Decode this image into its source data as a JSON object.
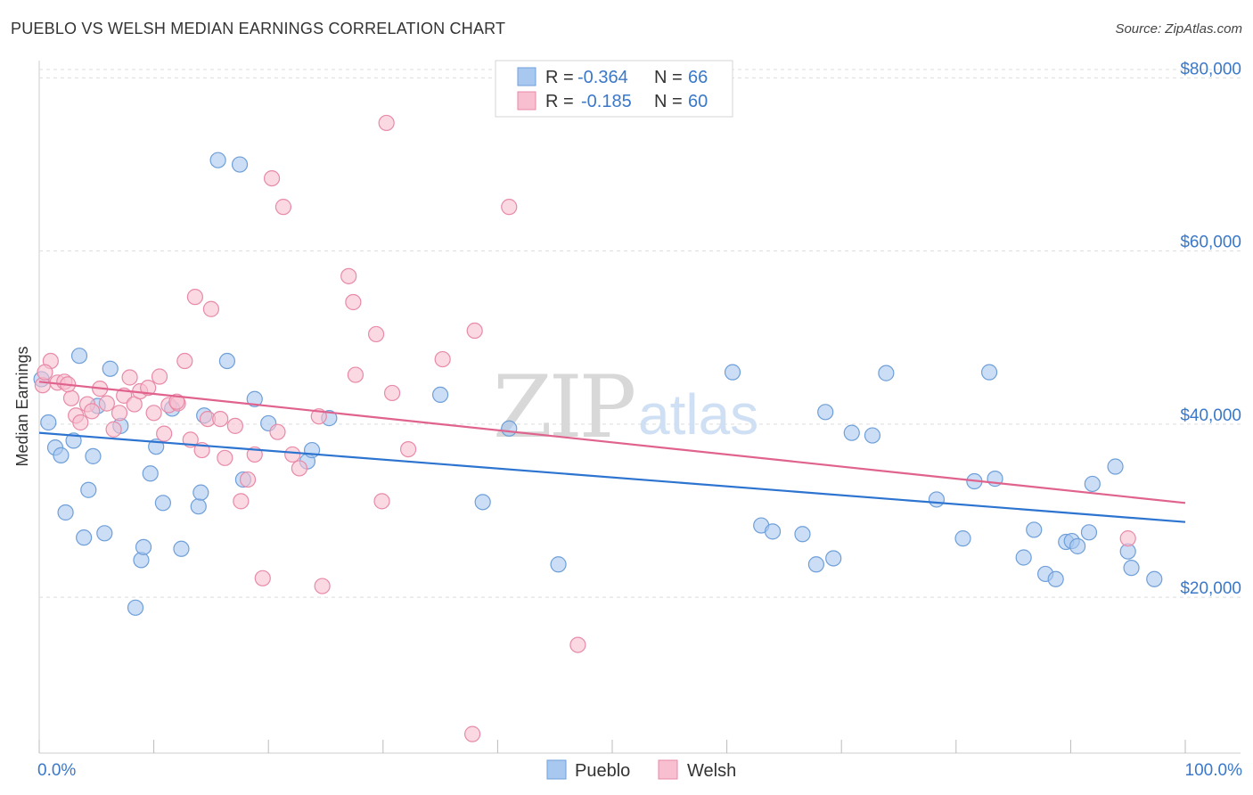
{
  "header": {
    "title": "PUEBLO VS WELSH MEDIAN EARNINGS CORRELATION CHART",
    "source": "Source: ZipAtlas.com"
  },
  "watermark": {
    "zip": "ZIP",
    "atlas": "atlas"
  },
  "legend": {
    "rows": [
      {
        "r_label": "R =",
        "r_value": "-0.364",
        "n_label": "N =",
        "n_value": "66",
        "color": "#a9c8f0",
        "border": "#6f9fd8"
      },
      {
        "r_label": "R =",
        "r_value": "-0.185",
        "n_label": "N =",
        "n_value": "60",
        "color": "#f7bfd0",
        "border": "#e88aa8"
      }
    ]
  },
  "bottom_legend": {
    "items": [
      "Pueblo",
      "Welsh"
    ]
  },
  "chart_data": {
    "type": "scatter",
    "title": "PUEBLO VS WELSH MEDIAN EARNINGS CORRELATION CHART",
    "xlabel": "",
    "ylabel": "Median Earnings",
    "xlim": [
      0,
      100
    ],
    "ylim": [
      2000,
      82000
    ],
    "x_tick_labels": [
      "0.0%",
      "100.0%"
    ],
    "y_ticks": [
      20000,
      40000,
      60000,
      80000
    ],
    "y_tick_labels": [
      "$20,000",
      "$40,000",
      "$60,000",
      "$80,000"
    ],
    "grid": true,
    "series": [
      {
        "name": "Pueblo",
        "color": "#a9c8f0",
        "stroke": "#6f9fd8",
        "line_color": "#2d74d0",
        "trend": {
          "x0": 0,
          "y0": 39000,
          "x1": 100,
          "y1": 28700
        },
        "points": [
          [
            0.2,
            45200
          ],
          [
            0.8,
            40200
          ],
          [
            1.4,
            37300
          ],
          [
            1.9,
            36400
          ],
          [
            2.3,
            29800
          ],
          [
            3.0,
            38100
          ],
          [
            3.5,
            47900
          ],
          [
            3.9,
            26900
          ],
          [
            4.3,
            32400
          ],
          [
            4.7,
            36300
          ],
          [
            5.1,
            42100
          ],
          [
            5.7,
            27400
          ],
          [
            6.2,
            46400
          ],
          [
            7.1,
            39800
          ],
          [
            8.4,
            18800
          ],
          [
            8.9,
            24300
          ],
          [
            9.1,
            25800
          ],
          [
            9.7,
            34300
          ],
          [
            10.2,
            37400
          ],
          [
            10.8,
            30900
          ],
          [
            11.6,
            41800
          ],
          [
            12.4,
            25600
          ],
          [
            13.9,
            30500
          ],
          [
            14.1,
            32100
          ],
          [
            14.4,
            41000
          ],
          [
            15.6,
            70500
          ],
          [
            16.4,
            47300
          ],
          [
            17.5,
            70000
          ],
          [
            17.8,
            33600
          ],
          [
            18.8,
            42900
          ],
          [
            20.0,
            40100
          ],
          [
            23.4,
            35700
          ],
          [
            23.8,
            37000
          ],
          [
            25.3,
            40700
          ],
          [
            35.0,
            43400
          ],
          [
            38.7,
            31000
          ],
          [
            41.0,
            39500
          ],
          [
            45.3,
            23800
          ],
          [
            60.5,
            46000
          ],
          [
            63.0,
            28300
          ],
          [
            64.0,
            27600
          ],
          [
            66.6,
            27300
          ],
          [
            67.8,
            23800
          ],
          [
            68.6,
            41400
          ],
          [
            69.3,
            24500
          ],
          [
            70.9,
            39000
          ],
          [
            72.7,
            38700
          ],
          [
            73.9,
            45900
          ],
          [
            78.3,
            31300
          ],
          [
            80.6,
            26800
          ],
          [
            81.6,
            33400
          ],
          [
            82.9,
            46000
          ],
          [
            83.4,
            33700
          ],
          [
            85.9,
            24600
          ],
          [
            86.8,
            27800
          ],
          [
            87.8,
            22700
          ],
          [
            88.7,
            22100
          ],
          [
            89.6,
            26400
          ],
          [
            90.1,
            26500
          ],
          [
            90.6,
            25900
          ],
          [
            91.6,
            27500
          ],
          [
            91.9,
            33100
          ],
          [
            93.9,
            35100
          ],
          [
            95.0,
            25300
          ],
          [
            95.3,
            23400
          ],
          [
            97.3,
            22100
          ]
        ]
      },
      {
        "name": "Welsh",
        "color": "#f7bfd0",
        "stroke": "#e88aa8",
        "line_color": "#e0638d",
        "trend": {
          "x0": 0,
          "y0": 44900,
          "x1": 100,
          "y1": 30900
        },
        "points": [
          [
            0.3,
            44500
          ],
          [
            1.0,
            47300
          ],
          [
            1.6,
            44800
          ],
          [
            2.2,
            44900
          ],
          [
            2.8,
            43000
          ],
          [
            3.2,
            41000
          ],
          [
            3.6,
            40200
          ],
          [
            4.2,
            42300
          ],
          [
            4.6,
            41500
          ],
          [
            5.3,
            44100
          ],
          [
            5.9,
            42400
          ],
          [
            6.5,
            39400
          ],
          [
            7.0,
            41300
          ],
          [
            7.4,
            43300
          ],
          [
            7.9,
            45400
          ],
          [
            8.3,
            42300
          ],
          [
            8.8,
            43800
          ],
          [
            9.5,
            44200
          ],
          [
            10.0,
            41300
          ],
          [
            10.5,
            45500
          ],
          [
            10.9,
            38900
          ],
          [
            11.3,
            42200
          ],
          [
            12.1,
            42400
          ],
          [
            12.7,
            47300
          ],
          [
            13.2,
            38200
          ],
          [
            13.6,
            54700
          ],
          [
            14.2,
            37000
          ],
          [
            14.7,
            40600
          ],
          [
            15.0,
            53300
          ],
          [
            15.8,
            40600
          ],
          [
            16.2,
            36100
          ],
          [
            17.1,
            39800
          ],
          [
            17.6,
            31100
          ],
          [
            18.2,
            33600
          ],
          [
            18.8,
            36500
          ],
          [
            19.5,
            22200
          ],
          [
            20.3,
            68400
          ],
          [
            20.8,
            39100
          ],
          [
            21.3,
            65100
          ],
          [
            22.1,
            36500
          ],
          [
            22.7,
            34900
          ],
          [
            24.4,
            40900
          ],
          [
            24.7,
            21300
          ],
          [
            27.0,
            57100
          ],
          [
            27.4,
            54100
          ],
          [
            27.6,
            45700
          ],
          [
            29.4,
            50400
          ],
          [
            29.9,
            31100
          ],
          [
            30.3,
            74800
          ],
          [
            30.8,
            43600
          ],
          [
            32.2,
            37100
          ],
          [
            35.2,
            47500
          ],
          [
            37.8,
            4200
          ],
          [
            38.0,
            50800
          ],
          [
            41.0,
            65100
          ],
          [
            47.0,
            14500
          ],
          [
            95.0,
            26800
          ],
          [
            0.5,
            46000
          ],
          [
            2.5,
            44600
          ],
          [
            12.0,
            42600
          ]
        ]
      }
    ]
  }
}
